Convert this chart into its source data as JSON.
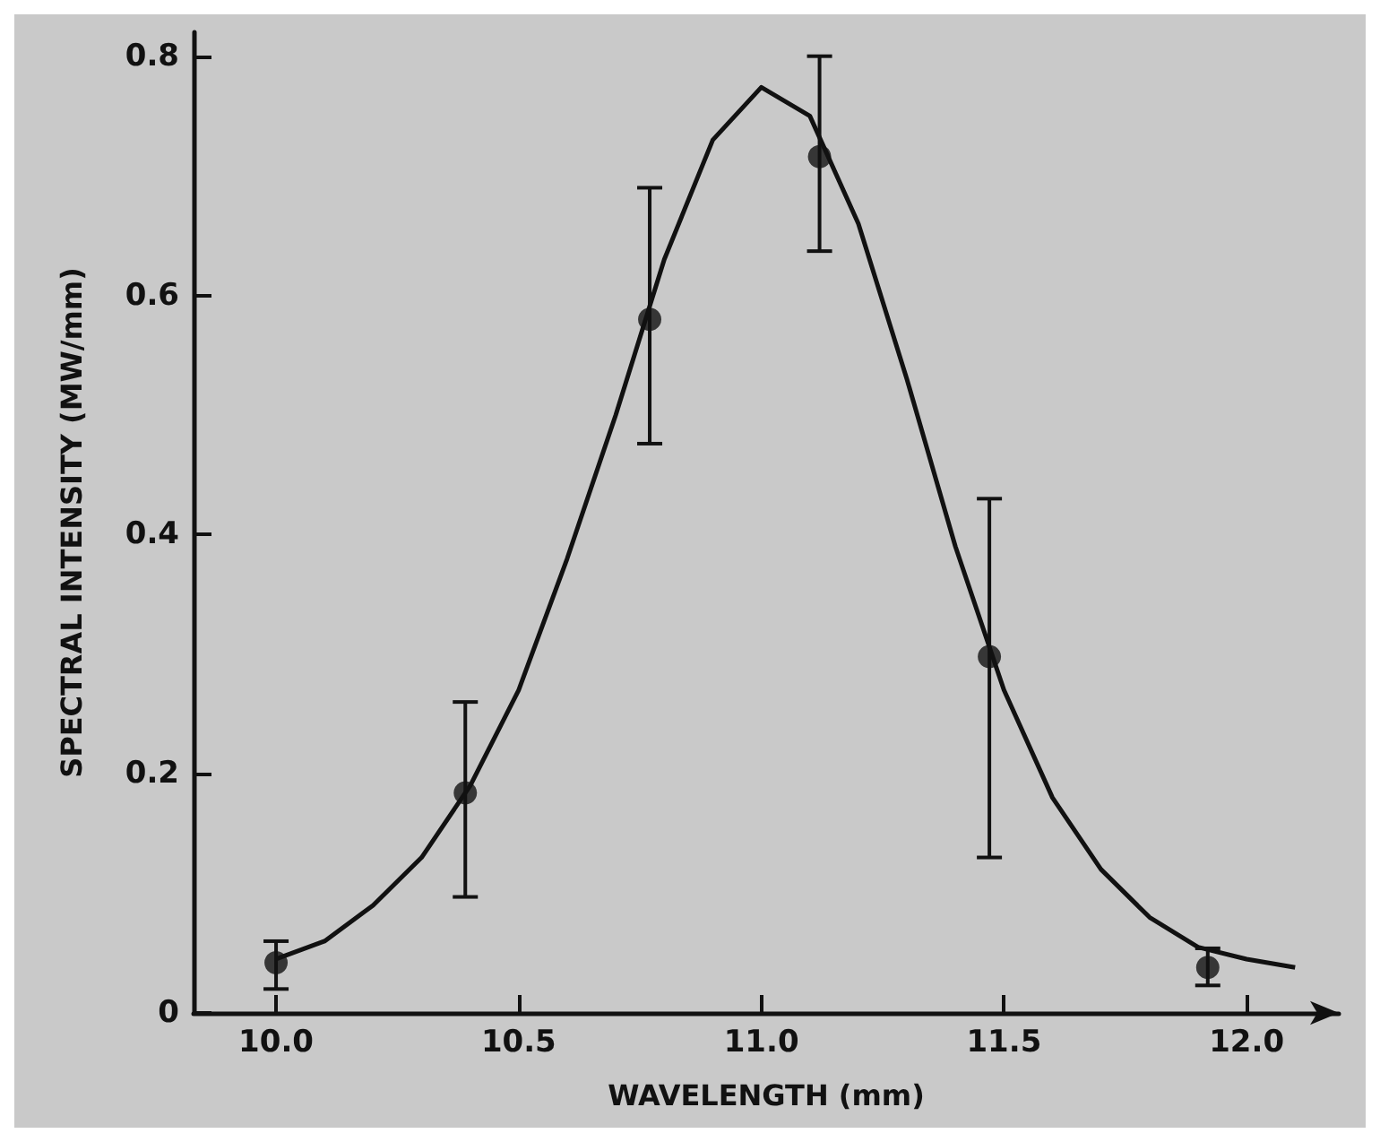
{
  "chart_data": {
    "type": "scatter",
    "xlabel": "WAVELENGTH (mm)",
    "ylabel": "SPECTRAL INTENSITY (MW/mm)",
    "xlim": [
      9.83,
      12.19
    ],
    "ylim": [
      0,
      0.82
    ],
    "xticks": [
      {
        "value": 10,
        "label": "10.0"
      },
      10.5,
      {
        "value": 11,
        "label": "11.0"
      },
      11.5,
      {
        "value": 12,
        "label": "12.0"
      }
    ],
    "yticks": [
      0,
      0.2,
      0.4,
      0.6,
      0.8
    ],
    "grid": false,
    "series": [
      {
        "color": "#111111",
        "marker": "circle",
        "x": [
          10.0,
          10.39,
          10.77,
          11.12,
          11.47,
          11.92
        ],
        "values": [
          0.042,
          0.184,
          0.58,
          0.716,
          0.298,
          0.038
        ],
        "errors": [
          [
            0.02,
            0.06
          ],
          [
            0.097,
            0.26
          ],
          [
            0.476,
            0.69
          ],
          [
            0.637,
            0.8
          ],
          [
            0.13,
            0.43
          ],
          [
            0.023,
            0.054
          ]
        ]
      },
      {
        "type": "line",
        "color": "#111111",
        "marker": "none",
        "line_style": "solid",
        "x": [
          10.0,
          10.1,
          10.2,
          10.3,
          10.4,
          10.5,
          10.6,
          10.7,
          10.8,
          10.9,
          11.0,
          11.1,
          11.2,
          11.3,
          11.4,
          11.5,
          11.6,
          11.7,
          11.8,
          11.9,
          12.0,
          12.1
        ],
        "values": [
          0.045,
          0.06,
          0.09,
          0.13,
          0.19,
          0.27,
          0.38,
          0.5,
          0.63,
          0.73,
          0.774,
          0.75,
          0.66,
          0.53,
          0.39,
          0.27,
          0.18,
          0.12,
          0.08,
          0.055,
          0.045,
          0.038
        ]
      }
    ]
  }
}
